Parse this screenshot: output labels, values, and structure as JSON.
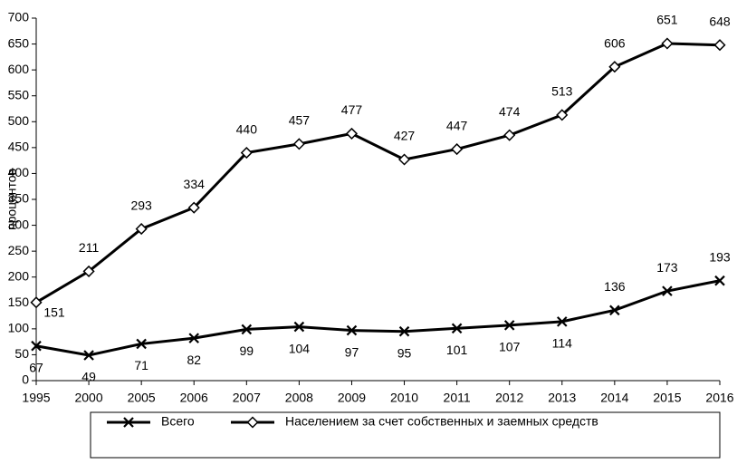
{
  "chart_data": {
    "type": "line",
    "y_label": "процентов",
    "categories": [
      "1995",
      "2000",
      "2005",
      "2006",
      "2007",
      "2008",
      "2009",
      "2010",
      "2011",
      "2012",
      "2013",
      "2014",
      "2015",
      "2016"
    ],
    "series": [
      {
        "name": "Всего",
        "color": "#000000",
        "marker": "x",
        "values": [
          67,
          49,
          71,
          82,
          99,
          104,
          97,
          95,
          101,
          107,
          114,
          136,
          173,
          193
        ]
      },
      {
        "name": "Населением за счет собственных и заемных средств",
        "color": "#000000",
        "marker": "diamond",
        "values": [
          151,
          211,
          293,
          334,
          440,
          457,
          477,
          427,
          447,
          474,
          513,
          606,
          651,
          648
        ]
      }
    ],
    "ylim": [
      0,
      700
    ],
    "yticks": [
      0,
      50,
      100,
      150,
      200,
      250,
      300,
      350,
      400,
      450,
      500,
      550,
      600,
      650,
      700
    ],
    "legend": "bottom"
  }
}
